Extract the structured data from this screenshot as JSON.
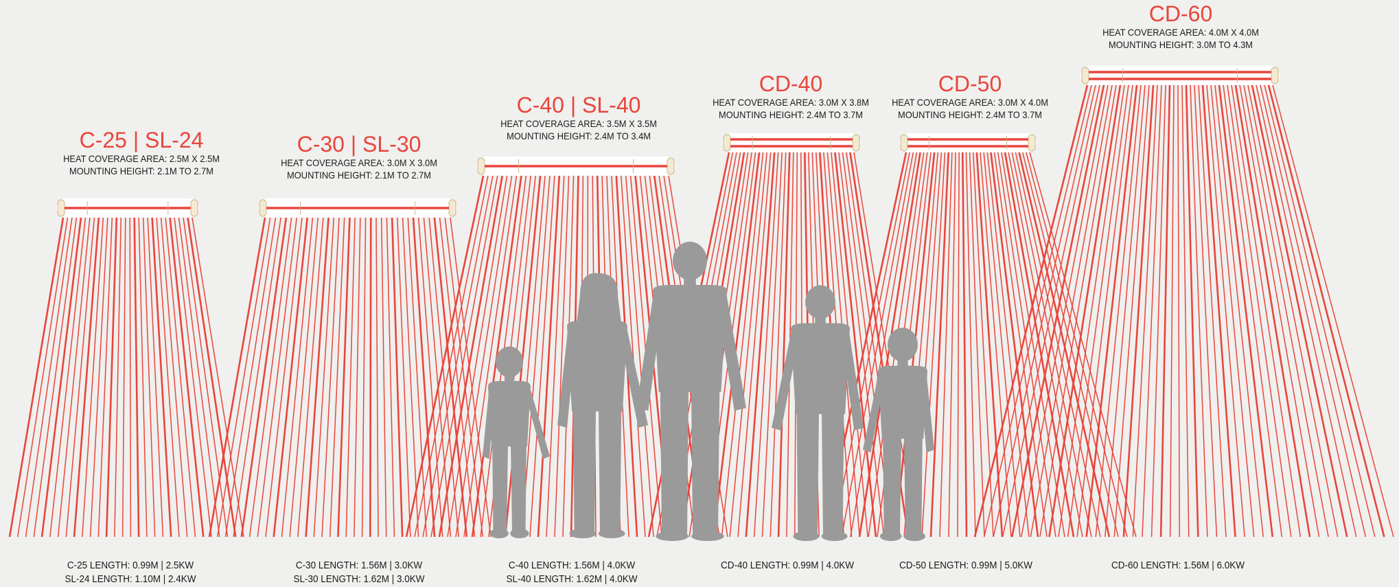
{
  "colors": {
    "accent": "#e8453c",
    "silhouette": "#9a9a9a",
    "background": "#f0f0ee",
    "text": "#1a1a1a"
  },
  "heaters": [
    {
      "title": "C-25 | SL-24",
      "coverage": "HEAT COVERAGE AREA: 2.5M X 2.5M",
      "mounting": "MOUNTING HEIGHT: 2.1M TO 2.7M",
      "length_lines": [
        "C-25 LENGTH: 0.99M | 2.5KW",
        "SL-24 LENGTH: 1.10M | 2.4KW"
      ],
      "tubes": 1
    },
    {
      "title": "C-30 | SL-30",
      "coverage": "HEAT COVERAGE AREA: 3.0M X 3.0M",
      "mounting": "MOUNTING HEIGHT: 2.1M TO 2.7M",
      "length_lines": [
        "C-30 LENGTH: 1.56M | 3.0KW",
        "SL-30 LENGTH: 1.62M | 3.0KW"
      ],
      "tubes": 1
    },
    {
      "title": "C-40 | SL-40",
      "coverage": "HEAT COVERAGE AREA: 3.5M X 3.5M",
      "mounting": "MOUNTING HEIGHT: 2.4M TO 3.4M",
      "length_lines": [
        "C-40 LENGTH: 1.56M | 4.0KW",
        "SL-40 LENGTH: 1.62M | 4.0KW"
      ],
      "tubes": 1
    },
    {
      "title": "CD-40",
      "coverage": "HEAT COVERAGE AREA: 3.0M X 3.8M",
      "mounting": "MOUNTING HEIGHT: 2.4M TO 3.7M",
      "length_lines": [
        "CD-40 LENGTH: 0.99M | 4.0KW"
      ],
      "tubes": 2
    },
    {
      "title": "CD-50",
      "coverage": "HEAT COVERAGE AREA: 3.0M X 4.0M",
      "mounting": "MOUNTING HEIGHT: 2.4M TO 3.7M",
      "length_lines": [
        "CD-50 LENGTH: 0.99M | 5.0KW"
      ],
      "tubes": 2
    },
    {
      "title": "CD-60",
      "coverage": "HEAT COVERAGE AREA: 4.0M X 4.0M",
      "mounting": "MOUNTING HEIGHT: 3.0M TO 4.3M",
      "length_lines": [
        "CD-60 LENGTH: 1.56M | 6.0KW"
      ],
      "tubes": 2
    }
  ],
  "figures": [
    {
      "name": "girl"
    },
    {
      "name": "woman"
    },
    {
      "name": "man"
    },
    {
      "name": "boy"
    },
    {
      "name": "child"
    }
  ]
}
